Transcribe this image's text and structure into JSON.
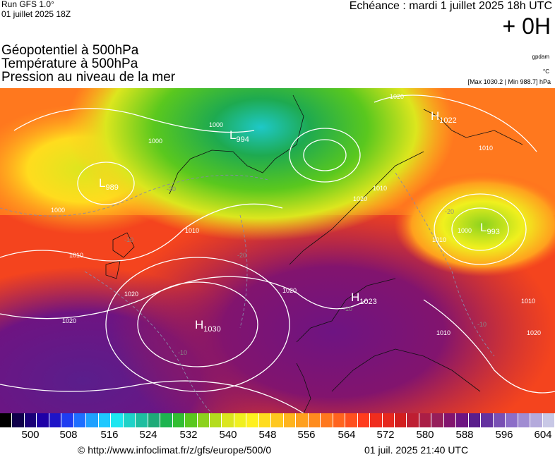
{
  "header": {
    "run_title": "Run GFS 1.0°",
    "run_date": "01 juillet 2025 18Z",
    "echeance": "Echéance : mardi 1 juillet 2025 18h UTC",
    "offset": "+ 0H",
    "layers": [
      "Géopotentiel à 500hPa",
      "Température à 500hPa",
      "Pression au niveau de la mer"
    ],
    "unit_geopotential": "gpdam",
    "unit_temperature": "°C",
    "pressure_range": "[Max 1030.2 | Min 988.7] hPa"
  },
  "pressure_centers": [
    {
      "type": "L",
      "value": "994"
    },
    {
      "type": "L",
      "value": "989"
    },
    {
      "type": "H",
      "value": "1022"
    },
    {
      "type": "L",
      "value": "993"
    },
    {
      "type": "H",
      "value": "1023"
    },
    {
      "type": "H",
      "value": "1030"
    }
  ],
  "isobar_labels": [
    "1020",
    "1000",
    "1000",
    "-20",
    "1000",
    "1010",
    "1010",
    "-10",
    "1020",
    "1020",
    "-20",
    "1020",
    "-10",
    "1010",
    "1020",
    "1010",
    "-20",
    "1000",
    "1010",
    "-10",
    "1010",
    "1020",
    "1010",
    "-10"
  ],
  "scale": {
    "colors": [
      "#000000",
      "#10004a",
      "#1a0078",
      "#1e00a6",
      "#1e14c8",
      "#1e3cf0",
      "#1e6eff",
      "#1ea0ff",
      "#1ec8ff",
      "#1ee6f0",
      "#1ed2c8",
      "#1ebea0",
      "#1eaa78",
      "#1eb450",
      "#32be32",
      "#5ac81e",
      "#8cd21e",
      "#b4dc1e",
      "#dce61e",
      "#f0f01e",
      "#fff01e",
      "#ffdc1e",
      "#ffc81e",
      "#ffb41e",
      "#ffa01e",
      "#ff8c1e",
      "#ff781e",
      "#ff641e",
      "#ff501e",
      "#ff3c1e",
      "#f02d1e",
      "#e6281e",
      "#d21e1e",
      "#be1e32",
      "#aa1e46",
      "#961e5a",
      "#82146e",
      "#6e1482",
      "#5a1e8c",
      "#6432a0",
      "#7850b4",
      "#8c6ec8",
      "#a08cd2",
      "#b4aadc",
      "#c8c8e6"
    ],
    "tick_labels": [
      "500",
      "508",
      "516",
      "524",
      "532",
      "540",
      "548",
      "556",
      "564",
      "572",
      "580",
      "588",
      "596",
      "604"
    ]
  },
  "footer": {
    "url": "© http://www.infoclimat.fr/z/gfs/europe/500/0",
    "timestamp": "01 juil. 2025 21:40 UTC"
  }
}
